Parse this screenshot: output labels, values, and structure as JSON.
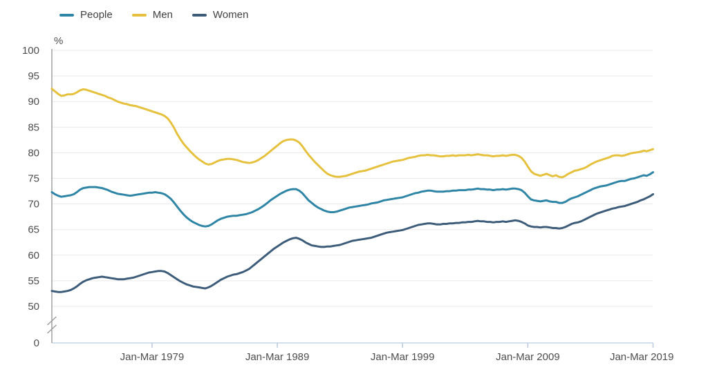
{
  "chart_data": {
    "type": "line",
    "unit_label": "%",
    "x_start": 1971.125,
    "x_step": 0.25,
    "x_end": 2019.125,
    "x_tick_positions": [
      1979.125,
      1989.125,
      1999.125,
      2009.125,
      2019.125
    ],
    "x_tick_labels": [
      "Jan-Mar 1979",
      "Jan-Mar 1989",
      "Jan-Mar 1999",
      "Jan-Mar 2009",
      "Jan-Mar 2019"
    ],
    "y_ticks_main": [
      100,
      95,
      90,
      85,
      80,
      75,
      70,
      65,
      60,
      55,
      50
    ],
    "y_baseline_label": "0",
    "ylim": [
      50,
      100
    ],
    "y_axis_break": true,
    "grid": "horizontal",
    "legend_position": "top-left",
    "series": [
      {
        "name": "People",
        "color": "#2e85a5",
        "values": [
          72.3,
          71.9,
          71.6,
          71.4,
          71.5,
          71.6,
          71.7,
          71.9,
          72.3,
          72.8,
          73.1,
          73.2,
          73.3,
          73.3,
          73.3,
          73.2,
          73.1,
          72.9,
          72.7,
          72.4,
          72.2,
          72.0,
          71.9,
          71.8,
          71.7,
          71.6,
          71.7,
          71.8,
          71.9,
          72.0,
          72.1,
          72.2,
          72.2,
          72.3,
          72.2,
          72.1,
          71.9,
          71.5,
          71.0,
          70.3,
          69.5,
          68.7,
          68.0,
          67.4,
          66.9,
          66.5,
          66.2,
          65.9,
          65.7,
          65.6,
          65.7,
          66.0,
          66.4,
          66.8,
          67.1,
          67.3,
          67.5,
          67.6,
          67.7,
          67.7,
          67.8,
          67.9,
          68.0,
          68.2,
          68.4,
          68.7,
          69.0,
          69.4,
          69.8,
          70.3,
          70.8,
          71.2,
          71.6,
          72.0,
          72.3,
          72.6,
          72.8,
          72.9,
          72.9,
          72.6,
          72.1,
          71.4,
          70.7,
          70.2,
          69.7,
          69.3,
          69.0,
          68.7,
          68.5,
          68.4,
          68.4,
          68.5,
          68.7,
          68.9,
          69.1,
          69.3,
          69.4,
          69.5,
          69.6,
          69.7,
          69.8,
          69.9,
          70.1,
          70.2,
          70.3,
          70.5,
          70.7,
          70.8,
          70.9,
          71.0,
          71.1,
          71.2,
          71.3,
          71.5,
          71.7,
          71.9,
          72.1,
          72.2,
          72.4,
          72.5,
          72.6,
          72.6,
          72.5,
          72.4,
          72.4,
          72.4,
          72.5,
          72.5,
          72.6,
          72.6,
          72.7,
          72.7,
          72.7,
          72.8,
          72.8,
          72.9,
          73.0,
          72.9,
          72.9,
          72.8,
          72.8,
          72.7,
          72.8,
          72.8,
          72.9,
          72.8,
          72.9,
          73.0,
          73.0,
          72.9,
          72.7,
          72.2,
          71.5,
          70.9,
          70.7,
          70.6,
          70.5,
          70.6,
          70.7,
          70.5,
          70.4,
          70.4,
          70.2,
          70.2,
          70.4,
          70.8,
          71.1,
          71.3,
          71.5,
          71.8,
          72.1,
          72.4,
          72.7,
          73.0,
          73.2,
          73.4,
          73.5,
          73.6,
          73.8,
          74.0,
          74.2,
          74.4,
          74.5,
          74.5,
          74.7,
          74.9,
          75.0,
          75.2,
          75.4,
          75.6,
          75.5,
          75.8,
          76.2
        ]
      },
      {
        "name": "Men",
        "color": "#e5c13d",
        "values": [
          92.5,
          92.0,
          91.5,
          91.1,
          91.2,
          91.4,
          91.4,
          91.5,
          91.8,
          92.2,
          92.4,
          92.3,
          92.1,
          91.9,
          91.7,
          91.5,
          91.3,
          91.1,
          90.8,
          90.6,
          90.3,
          90.0,
          89.8,
          89.6,
          89.5,
          89.3,
          89.2,
          89.1,
          88.9,
          88.7,
          88.5,
          88.3,
          88.1,
          87.9,
          87.7,
          87.5,
          87.2,
          86.7,
          85.9,
          84.9,
          83.7,
          82.7,
          81.8,
          81.1,
          80.4,
          79.8,
          79.2,
          78.7,
          78.3,
          77.9,
          77.7,
          77.8,
          78.1,
          78.4,
          78.6,
          78.7,
          78.8,
          78.8,
          78.7,
          78.6,
          78.4,
          78.2,
          78.1,
          78.0,
          78.1,
          78.3,
          78.6,
          79.0,
          79.4,
          79.9,
          80.4,
          80.9,
          81.4,
          81.9,
          82.3,
          82.5,
          82.6,
          82.6,
          82.4,
          82.0,
          81.3,
          80.4,
          79.6,
          78.9,
          78.2,
          77.6,
          77.0,
          76.4,
          75.9,
          75.6,
          75.4,
          75.3,
          75.3,
          75.4,
          75.5,
          75.7,
          75.9,
          76.1,
          76.3,
          76.4,
          76.5,
          76.7,
          76.9,
          77.1,
          77.3,
          77.5,
          77.7,
          77.9,
          78.1,
          78.3,
          78.4,
          78.5,
          78.6,
          78.8,
          79.0,
          79.1,
          79.2,
          79.4,
          79.5,
          79.5,
          79.6,
          79.5,
          79.5,
          79.4,
          79.3,
          79.3,
          79.4,
          79.4,
          79.5,
          79.4,
          79.5,
          79.5,
          79.5,
          79.6,
          79.5,
          79.6,
          79.7,
          79.6,
          79.5,
          79.5,
          79.4,
          79.3,
          79.4,
          79.4,
          79.5,
          79.4,
          79.5,
          79.6,
          79.6,
          79.4,
          79.0,
          78.3,
          77.3,
          76.4,
          75.9,
          75.7,
          75.5,
          75.7,
          75.9,
          75.6,
          75.4,
          75.6,
          75.3,
          75.2,
          75.5,
          75.9,
          76.2,
          76.5,
          76.6,
          76.8,
          77.0,
          77.3,
          77.7,
          78.0,
          78.3,
          78.5,
          78.7,
          78.9,
          79.1,
          79.4,
          79.5,
          79.5,
          79.4,
          79.5,
          79.7,
          79.9,
          80.0,
          80.1,
          80.2,
          80.4,
          80.3,
          80.5,
          80.7
        ]
      },
      {
        "name": "Women",
        "color": "#3d5c7a",
        "values": [
          53.0,
          52.9,
          52.8,
          52.8,
          52.9,
          53.0,
          53.2,
          53.5,
          53.9,
          54.4,
          54.8,
          55.1,
          55.3,
          55.5,
          55.6,
          55.7,
          55.8,
          55.7,
          55.6,
          55.5,
          55.4,
          55.3,
          55.3,
          55.3,
          55.4,
          55.5,
          55.6,
          55.8,
          56.0,
          56.2,
          56.4,
          56.6,
          56.7,
          56.8,
          56.9,
          56.9,
          56.8,
          56.5,
          56.1,
          55.7,
          55.3,
          54.9,
          54.6,
          54.3,
          54.1,
          53.9,
          53.8,
          53.7,
          53.6,
          53.5,
          53.7,
          54.0,
          54.4,
          54.8,
          55.2,
          55.5,
          55.8,
          56.0,
          56.2,
          56.3,
          56.5,
          56.7,
          57.0,
          57.3,
          57.8,
          58.3,
          58.8,
          59.3,
          59.8,
          60.3,
          60.8,
          61.3,
          61.7,
          62.1,
          62.5,
          62.8,
          63.1,
          63.3,
          63.4,
          63.2,
          62.9,
          62.5,
          62.2,
          61.9,
          61.8,
          61.7,
          61.6,
          61.6,
          61.7,
          61.7,
          61.8,
          61.9,
          62.0,
          62.2,
          62.4,
          62.6,
          62.8,
          62.9,
          63.0,
          63.1,
          63.2,
          63.3,
          63.4,
          63.6,
          63.8,
          64.0,
          64.2,
          64.4,
          64.5,
          64.6,
          64.7,
          64.8,
          64.9,
          65.1,
          65.3,
          65.5,
          65.7,
          65.9,
          66.0,
          66.1,
          66.2,
          66.2,
          66.1,
          66.0,
          66.0,
          66.1,
          66.1,
          66.2,
          66.2,
          66.3,
          66.3,
          66.4,
          66.4,
          66.5,
          66.5,
          66.6,
          66.7,
          66.6,
          66.6,
          66.5,
          66.5,
          66.4,
          66.5,
          66.5,
          66.6,
          66.5,
          66.6,
          66.7,
          66.8,
          66.7,
          66.5,
          66.2,
          65.8,
          65.6,
          65.5,
          65.5,
          65.4,
          65.5,
          65.5,
          65.4,
          65.3,
          65.3,
          65.2,
          65.3,
          65.5,
          65.8,
          66.1,
          66.3,
          66.4,
          66.6,
          66.9,
          67.2,
          67.5,
          67.8,
          68.1,
          68.3,
          68.5,
          68.7,
          68.9,
          69.1,
          69.2,
          69.4,
          69.5,
          69.6,
          69.8,
          70.0,
          70.2,
          70.4,
          70.7,
          70.9,
          71.2,
          71.5,
          71.9
        ]
      }
    ],
    "style_colors": {
      "gridline": "#e9e9e9",
      "axis_line": "#9b9b9b",
      "baseline": "#d2dfec",
      "tick": "#b9c9dc",
      "axis_label": "#4d4d4f",
      "legend_text": "#414042"
    }
  }
}
